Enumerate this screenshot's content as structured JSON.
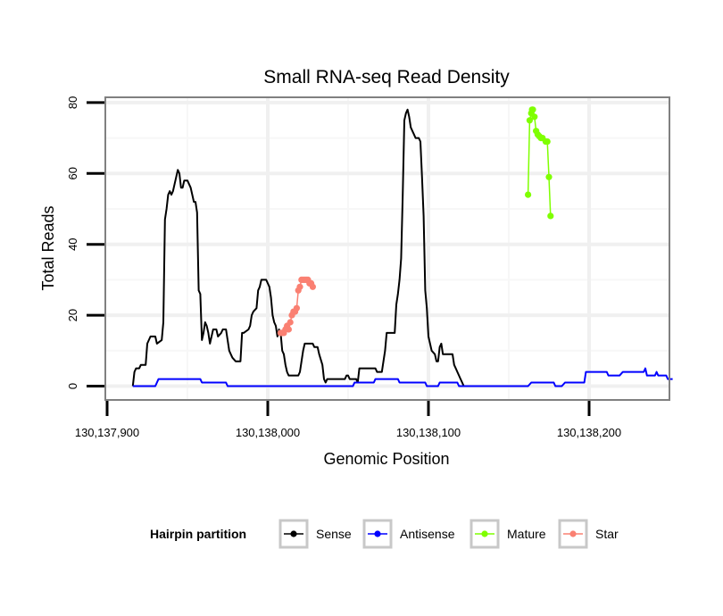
{
  "chart_data": {
    "type": "line",
    "title": "Small RNA-seq Read Density",
    "xlabel": "Genomic Position",
    "ylabel": "Total Reads",
    "xlim": [
      130137900,
      130138250
    ],
    "ylim": [
      -4,
      82
    ],
    "x_ticks": [
      130137900,
      130138000,
      130138100,
      130138200
    ],
    "x_tick_labels": [
      "130,137,900",
      "130,138,000",
      "130,138,100",
      "130,138,200"
    ],
    "y_ticks": [
      0,
      20,
      40,
      60,
      80
    ],
    "y_tick_labels": [
      "0",
      "20",
      "40",
      "60",
      "80"
    ],
    "grid": true,
    "legend": {
      "title": "Hairpin partition",
      "position": "bottom",
      "entries": [
        {
          "name": "Sense",
          "color": "#000000"
        },
        {
          "name": "Antisense",
          "color": "#0000ff"
        },
        {
          "name": "Mature",
          "color": "#7fff00"
        },
        {
          "name": "Star",
          "color": "#fa8072"
        }
      ]
    },
    "series": [
      {
        "name": "Sense",
        "color": "#000000",
        "marker": false,
        "points": [
          [
            130137916,
            0
          ],
          [
            130137917,
            4
          ],
          [
            130137918,
            5
          ],
          [
            130137920,
            5
          ],
          [
            130137921,
            6
          ],
          [
            130137924,
            6
          ],
          [
            130137925,
            12
          ],
          [
            130137926,
            13
          ],
          [
            130137927,
            14
          ],
          [
            130137930,
            14
          ],
          [
            130137931,
            12
          ],
          [
            130137934,
            13
          ],
          [
            130137935,
            18
          ],
          [
            130137936,
            47
          ],
          [
            130137937,
            50
          ],
          [
            130137938,
            54
          ],
          [
            130137939,
            55
          ],
          [
            130137940,
            54
          ],
          [
            130137941,
            55
          ],
          [
            130137942,
            57
          ],
          [
            130137943,
            59
          ],
          [
            130137944,
            61
          ],
          [
            130137945,
            60
          ],
          [
            130137946,
            56
          ],
          [
            130137947,
            56
          ],
          [
            130137948,
            58
          ],
          [
            130137950,
            58
          ],
          [
            130137951,
            57
          ],
          [
            130137952,
            56
          ],
          [
            130137953,
            54
          ],
          [
            130137954,
            52
          ],
          [
            130137955,
            52
          ],
          [
            130137956,
            49
          ],
          [
            130137957,
            27
          ],
          [
            130137958,
            26
          ],
          [
            130137959,
            13
          ],
          [
            130137960,
            15
          ],
          [
            130137961,
            18
          ],
          [
            130137962,
            17
          ],
          [
            130137963,
            15
          ],
          [
            130137964,
            12
          ],
          [
            130137965,
            14
          ],
          [
            130137966,
            16
          ],
          [
            130137968,
            16
          ],
          [
            130137969,
            14
          ],
          [
            130137971,
            15
          ],
          [
            130137972,
            16
          ],
          [
            130137974,
            16
          ],
          [
            130137975,
            13
          ],
          [
            130137976,
            10
          ],
          [
            130137977,
            9
          ],
          [
            130137978,
            8
          ],
          [
            130137980,
            7
          ],
          [
            130137983,
            7
          ],
          [
            130137984,
            15
          ],
          [
            130137985,
            15
          ],
          [
            130137988,
            16
          ],
          [
            130137989,
            17
          ],
          [
            130137990,
            20
          ],
          [
            130137991,
            21
          ],
          [
            130137993,
            22
          ],
          [
            130137994,
            27
          ],
          [
            130137995,
            28
          ],
          [
            130137996,
            30
          ],
          [
            130137999,
            30
          ],
          [
            130138000,
            29
          ],
          [
            130138001,
            28
          ],
          [
            130138002,
            25
          ],
          [
            130138003,
            20
          ],
          [
            130138004,
            18
          ],
          [
            130138005,
            17
          ],
          [
            130138006,
            14
          ],
          [
            130138007,
            16
          ],
          [
            130138008,
            15
          ],
          [
            130138009,
            10
          ],
          [
            130138010,
            9
          ],
          [
            130138011,
            6
          ],
          [
            130138012,
            4
          ],
          [
            130138013,
            3
          ],
          [
            130138019,
            3
          ],
          [
            130138020,
            4
          ],
          [
            130138021,
            7
          ],
          [
            130138022,
            10
          ],
          [
            130138023,
            12
          ],
          [
            130138028,
            12
          ],
          [
            130138029,
            11
          ],
          [
            130138031,
            11
          ],
          [
            130138032,
            9
          ],
          [
            130138034,
            6
          ],
          [
            130138035,
            2
          ],
          [
            130138036,
            1
          ],
          [
            130138037,
            2
          ],
          [
            130138048,
            2
          ],
          [
            130138049,
            3
          ],
          [
            130138050,
            3
          ],
          [
            130138051,
            2
          ],
          [
            130138055,
            2
          ],
          [
            130138056,
            1
          ],
          [
            130138057,
            5
          ],
          [
            130138067,
            5
          ],
          [
            130138068,
            4
          ],
          [
            130138071,
            4
          ],
          [
            130138072,
            7
          ],
          [
            130138073,
            10
          ],
          [
            130138074,
            15
          ],
          [
            130138079,
            15
          ],
          [
            130138080,
            23
          ],
          [
            130138081,
            26
          ],
          [
            130138082,
            30
          ],
          [
            130138083,
            36
          ],
          [
            130138084,
            54
          ],
          [
            130138085,
            75
          ],
          [
            130138086,
            77
          ],
          [
            130138087,
            78
          ],
          [
            130138088,
            76
          ],
          [
            130138089,
            73
          ],
          [
            130138090,
            72
          ],
          [
            130138091,
            71
          ],
          [
            130138092,
            70
          ],
          [
            130138094,
            70
          ],
          [
            130138095,
            69
          ],
          [
            130138096,
            59
          ],
          [
            130138097,
            48
          ],
          [
            130138098,
            27
          ],
          [
            130138099,
            22
          ],
          [
            130138100,
            14
          ],
          [
            130138101,
            12
          ],
          [
            130138102,
            10
          ],
          [
            130138104,
            9
          ],
          [
            130138105,
            7
          ],
          [
            130138106,
            7
          ],
          [
            130138107,
            11
          ],
          [
            130138108,
            12
          ],
          [
            130138109,
            9
          ],
          [
            130138115,
            9
          ],
          [
            130138116,
            6
          ],
          [
            130138117,
            5
          ],
          [
            130138118,
            4
          ],
          [
            130138119,
            3
          ],
          [
            130138120,
            2
          ],
          [
            130138121,
            1
          ],
          [
            130138122,
            0
          ],
          [
            130138135,
            0
          ]
        ]
      },
      {
        "name": "Antisense",
        "color": "#0000ff",
        "marker": false,
        "points": [
          [
            130137916,
            0
          ],
          [
            130137930,
            0
          ],
          [
            130137932,
            2
          ],
          [
            130137958,
            2
          ],
          [
            130137959,
            1
          ],
          [
            130137974,
            1
          ],
          [
            130137975,
            0
          ],
          [
            130138053,
            0
          ],
          [
            130138054,
            1
          ],
          [
            130138066,
            1
          ],
          [
            130138067,
            2
          ],
          [
            130138081,
            2
          ],
          [
            130138082,
            1
          ],
          [
            130138098,
            1
          ],
          [
            130138099,
            0
          ],
          [
            130138106,
            0
          ],
          [
            130138107,
            1
          ],
          [
            130138118,
            1
          ],
          [
            130138119,
            0
          ],
          [
            130138162,
            0
          ],
          [
            130138164,
            1
          ],
          [
            130138178,
            1
          ],
          [
            130138179,
            0
          ],
          [
            130138183,
            0
          ],
          [
            130138185,
            1
          ],
          [
            130138197,
            1
          ],
          [
            130138198,
            4
          ],
          [
            130138211,
            4
          ],
          [
            130138212,
            3
          ],
          [
            130138219,
            3
          ],
          [
            130138221,
            4
          ],
          [
            130138234,
            4
          ],
          [
            130138235,
            5
          ],
          [
            130138236,
            3
          ],
          [
            130138241,
            3
          ],
          [
            130138242,
            4
          ],
          [
            130138243,
            3
          ],
          [
            130138248,
            3
          ],
          [
            130138249,
            2
          ],
          [
            130138252,
            2
          ]
        ]
      },
      {
        "name": "Mature",
        "color": "#7fff00",
        "marker": true,
        "points": [
          [
            130138162,
            54
          ],
          [
            130138163,
            75
          ],
          [
            130138164,
            77
          ],
          [
            130138164.5,
            78
          ],
          [
            130138165,
            78
          ],
          [
            130138166,
            76
          ],
          [
            130138167,
            72
          ],
          [
            130138168,
            71
          ],
          [
            130138169,
            70.5
          ],
          [
            130138170,
            70
          ],
          [
            130138171,
            70
          ],
          [
            130138173,
            69
          ],
          [
            130138174,
            69
          ],
          [
            130138175,
            59
          ],
          [
            130138176,
            48
          ]
        ]
      },
      {
        "name": "Star",
        "color": "#fa8072",
        "marker": true,
        "points": [
          [
            130138008,
            15
          ],
          [
            130138009,
            15
          ],
          [
            130138010,
            15
          ],
          [
            130138011,
            16
          ],
          [
            130138012,
            17
          ],
          [
            130138013,
            16
          ],
          [
            130138014,
            18
          ],
          [
            130138015,
            20
          ],
          [
            130138016,
            21
          ],
          [
            130138017,
            21
          ],
          [
            130138018,
            22
          ],
          [
            130138019,
            27
          ],
          [
            130138020,
            28
          ],
          [
            130138021,
            30
          ],
          [
            130138022,
            30
          ],
          [
            130138023,
            30
          ],
          [
            130138024,
            30
          ],
          [
            130138025,
            30
          ],
          [
            130138026,
            29
          ],
          [
            130138027,
            29
          ],
          [
            130138028,
            28
          ]
        ]
      }
    ]
  }
}
